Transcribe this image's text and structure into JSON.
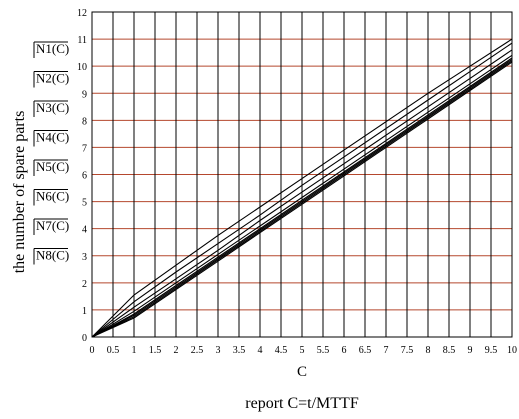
{
  "chart_data": {
    "type": "line",
    "ylabel": "the number of spare parts",
    "xlabel_symbol": "C",
    "xlabel": "report C=t/MTTF",
    "xlim": [
      0,
      10
    ],
    "ylim": [
      0,
      12
    ],
    "x_ticks": [
      "0",
      "0.5",
      "1",
      "1.5",
      "2",
      "2.5",
      "3",
      "3.5",
      "4",
      "4.5",
      "5",
      "5.5",
      "6",
      "6.5",
      "7",
      "7.5",
      "8",
      "8.5",
      "9",
      "9.5",
      "10"
    ],
    "y_ticks": [
      "0",
      "1",
      "2",
      "3",
      "4",
      "5",
      "6",
      "7",
      "8",
      "9",
      "10",
      "11",
      "12"
    ],
    "grid": true,
    "grid_colors": {
      "vertical": "#000000",
      "horizontal": "#b5482e"
    },
    "series_color": "#000000",
    "legend": [
      "N1(C)",
      "N2(C)",
      "N3(C)",
      "N4(C)",
      "N5(C)",
      "N6(C)",
      "N7(C)",
      "N8(C)"
    ],
    "series": [
      {
        "name": "N1(C)",
        "x": [
          0,
          1,
          2,
          3,
          4,
          5,
          6,
          7,
          8,
          9,
          10
        ],
        "y": [
          0,
          1.55,
          2.65,
          3.75,
          4.8,
          5.85,
          6.9,
          7.95,
          9.0,
          10.0,
          11.0
        ]
      },
      {
        "name": "N2(C)",
        "x": [
          0,
          1,
          2,
          3,
          4,
          5,
          6,
          7,
          8,
          9,
          10
        ],
        "y": [
          0,
          1.3,
          2.4,
          3.45,
          4.5,
          5.6,
          6.65,
          7.7,
          8.75,
          9.8,
          10.85
        ]
      },
      {
        "name": "N3(C)",
        "x": [
          0,
          1,
          2,
          3,
          4,
          5,
          6,
          7,
          8,
          9,
          10
        ],
        "y": [
          0,
          1.1,
          2.15,
          3.2,
          4.3,
          5.35,
          6.4,
          7.45,
          8.5,
          9.55,
          10.6
        ]
      },
      {
        "name": "N4(C)",
        "x": [
          0,
          1,
          2,
          3,
          4,
          5,
          6,
          7,
          8,
          9,
          10
        ],
        "y": [
          0,
          0.95,
          2.0,
          3.05,
          4.1,
          5.15,
          6.2,
          7.25,
          8.3,
          9.35,
          10.4
        ]
      },
      {
        "name": "N5(C)",
        "x": [
          0,
          1,
          2,
          3,
          4,
          5,
          6,
          7,
          8,
          9,
          10
        ],
        "y": [
          0,
          0.85,
          1.9,
          2.95,
          4.0,
          5.05,
          6.1,
          7.15,
          8.2,
          9.25,
          10.3
        ]
      },
      {
        "name": "N6(C)",
        "x": [
          0,
          1,
          2,
          3,
          4,
          5,
          6,
          7,
          8,
          9,
          10
        ],
        "y": [
          0,
          0.8,
          1.85,
          2.9,
          3.95,
          5.0,
          6.05,
          7.1,
          8.15,
          9.2,
          10.25
        ]
      },
      {
        "name": "N7(C)",
        "x": [
          0,
          1,
          2,
          3,
          4,
          5,
          6,
          7,
          8,
          9,
          10
        ],
        "y": [
          0,
          0.75,
          1.8,
          2.85,
          3.9,
          4.95,
          6.0,
          7.05,
          8.1,
          9.15,
          10.2
        ]
      },
      {
        "name": "N8(C)",
        "x": [
          0,
          1,
          2,
          3,
          4,
          5,
          6,
          7,
          8,
          9,
          10
        ],
        "y": [
          0,
          0.7,
          1.75,
          2.8,
          3.85,
          4.9,
          5.95,
          7.0,
          8.05,
          9.1,
          10.15
        ]
      }
    ]
  }
}
